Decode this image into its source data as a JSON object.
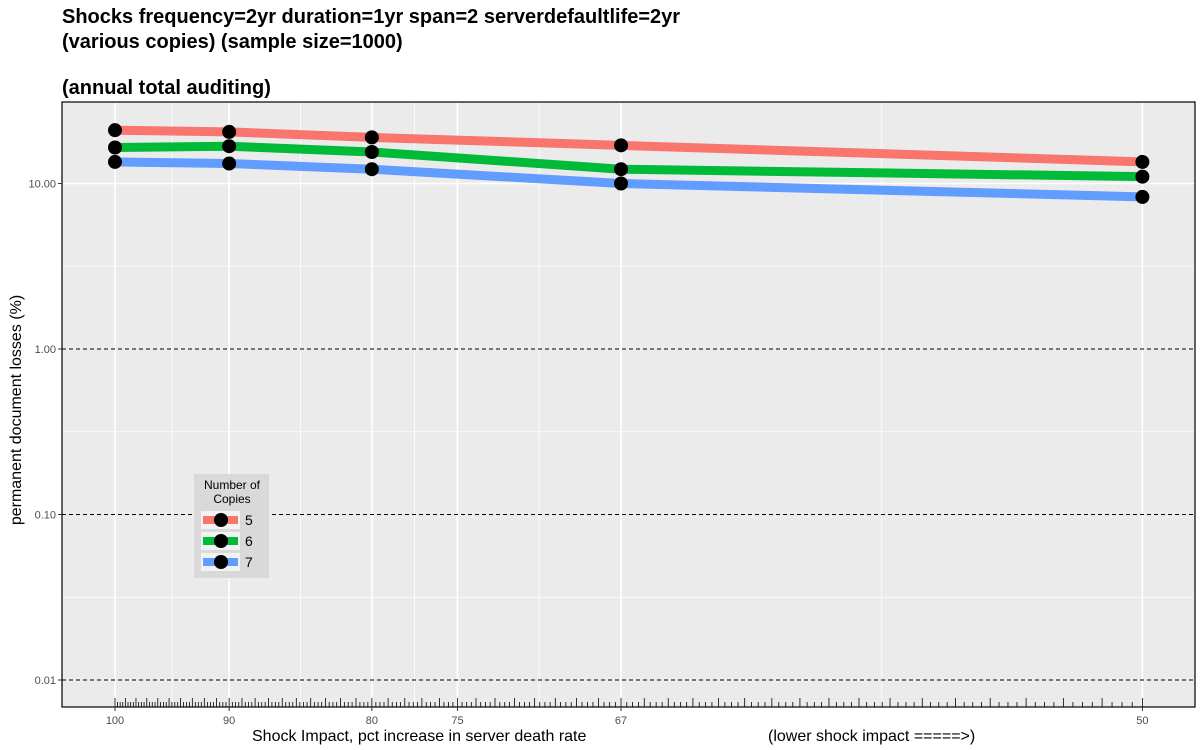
{
  "chart_data": {
    "type": "line",
    "title_lines": [
      "Shocks frequency=2yr duration=1yr span=2 serverdefaultlife=2yr",
      "(various copies) (sample size=1000)",
      "",
      "(annual total auditing)"
    ],
    "xlabel": "Shock Impact, pct increase in server death rate",
    "xlabel_note": "(lower shock impact =====>)",
    "ylabel": "permanent document losses (%)",
    "x_scale": "reciprocal",
    "x_ticks": [
      100,
      90,
      80,
      75,
      67,
      50
    ],
    "x_tick_labels": [
      "100",
      "90",
      "80",
      "75",
      "67",
      "50"
    ],
    "y_scale": "log",
    "ylim": [
      0.007,
      30
    ],
    "y_ticks": [
      0.01,
      0.1,
      1.0,
      10.0
    ],
    "y_tick_labels": [
      "0.01",
      "0.10",
      "1.00",
      "10.00"
    ],
    "x": [
      100,
      90,
      80,
      67,
      50
    ],
    "series": [
      {
        "name": "5",
        "color": "#F8766D",
        "values": [
          21.0,
          20.5,
          19.0,
          17.0,
          13.5
        ]
      },
      {
        "name": "6",
        "color": "#00BA38",
        "values": [
          16.5,
          16.8,
          15.5,
          12.2,
          11.0
        ]
      },
      {
        "name": "7",
        "color": "#619CFF",
        "values": [
          13.5,
          13.2,
          12.2,
          10.0,
          8.3
        ]
      }
    ],
    "legend": {
      "title_lines": [
        "Number of",
        "Copies"
      ],
      "placement": "inside-bottom-left"
    },
    "grid": true
  }
}
